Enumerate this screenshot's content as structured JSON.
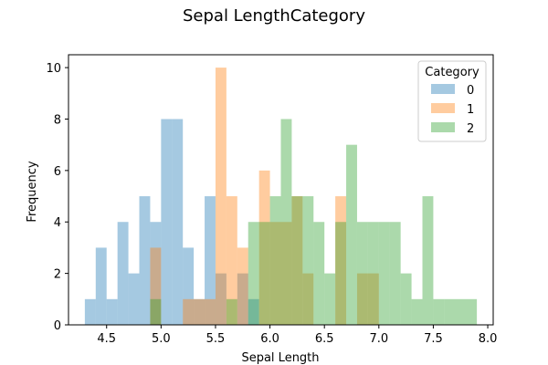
{
  "chart_data": {
    "type": "bar",
    "title": "Sepal LengthCategory",
    "xlabel": "Sepal Length",
    "ylabel": "Frequency",
    "xlim": [
      4.15,
      8.05
    ],
    "ylim": [
      0,
      10.5
    ],
    "x_ticks": [
      "4.5",
      "5.0",
      "5.5",
      "6.0",
      "6.5",
      "7.0",
      "7.5",
      "8.0"
    ],
    "y_ticks": [
      "0",
      "2",
      "4",
      "6",
      "8",
      "10"
    ],
    "grid": false,
    "legend": {
      "title": "Category",
      "placement": "top-right"
    },
    "series": [
      {
        "name": "0",
        "color": "#1f77b4",
        "bins": [
          [
            4.3,
            4.4,
            1
          ],
          [
            4.4,
            4.5,
            3
          ],
          [
            4.5,
            4.6,
            1
          ],
          [
            4.6,
            4.7,
            4
          ],
          [
            4.7,
            4.8,
            2
          ],
          [
            4.8,
            4.9,
            5
          ],
          [
            4.9,
            5.0,
            4
          ],
          [
            5.0,
            5.1,
            8
          ],
          [
            5.1,
            5.2,
            8
          ],
          [
            5.2,
            5.3,
            3
          ],
          [
            5.3,
            5.4,
            1
          ],
          [
            5.4,
            5.5,
            5
          ],
          [
            5.5,
            5.6,
            2
          ],
          [
            5.7,
            5.8,
            2
          ],
          [
            5.8,
            5.9,
            1
          ]
        ]
      },
      {
        "name": "1",
        "color": "#ff7f0e",
        "bins": [
          [
            4.9,
            5.0,
            3
          ],
          [
            5.0,
            5.2,
            0
          ],
          [
            5.2,
            5.5,
            1
          ],
          [
            5.5,
            5.6,
            10
          ],
          [
            5.6,
            5.7,
            5
          ],
          [
            5.7,
            5.8,
            3
          ],
          [
            5.9,
            6.0,
            6
          ],
          [
            6.0,
            6.1,
            4
          ],
          [
            6.1,
            6.2,
            4
          ],
          [
            6.2,
            6.3,
            5
          ],
          [
            6.3,
            6.4,
            2
          ],
          [
            6.6,
            6.7,
            5
          ],
          [
            6.8,
            6.9,
            2
          ],
          [
            6.9,
            7.0,
            2
          ]
        ]
      },
      {
        "name": "2",
        "color": "#2ca02c",
        "bins": [
          [
            4.9,
            5.0,
            1
          ],
          [
            5.6,
            5.7,
            1
          ],
          [
            5.8,
            5.9,
            4
          ],
          [
            5.9,
            6.0,
            4
          ],
          [
            6.0,
            6.1,
            5
          ],
          [
            6.1,
            6.2,
            8
          ],
          [
            6.2,
            6.3,
            5
          ],
          [
            6.3,
            6.4,
            5
          ],
          [
            6.4,
            6.5,
            4
          ],
          [
            6.5,
            6.6,
            2
          ],
          [
            6.6,
            6.7,
            4
          ],
          [
            6.7,
            6.8,
            7
          ],
          [
            6.8,
            6.9,
            4
          ],
          [
            6.9,
            7.0,
            4
          ],
          [
            7.0,
            7.1,
            4
          ],
          [
            7.1,
            7.2,
            4
          ],
          [
            7.2,
            7.3,
            2
          ],
          [
            7.3,
            7.4,
            1
          ],
          [
            7.4,
            7.5,
            5
          ],
          [
            7.5,
            7.6,
            1
          ],
          [
            7.6,
            7.9,
            1
          ]
        ]
      }
    ]
  }
}
